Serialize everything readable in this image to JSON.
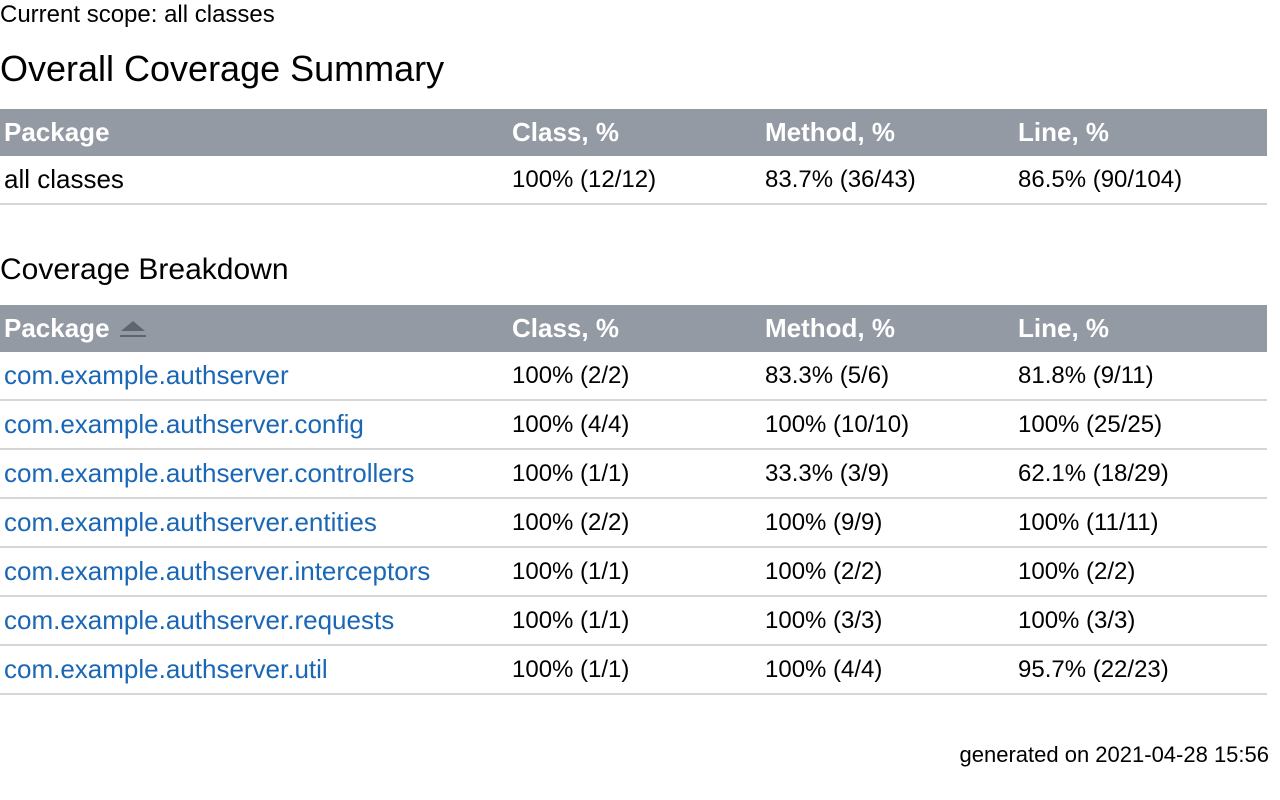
{
  "header": {
    "scope": "Current scope: all classes",
    "title": "Overall Coverage Summary"
  },
  "summary_table": {
    "columns": [
      "Package",
      "Class, %",
      "Method, %",
      "Line, %"
    ],
    "rows": [
      {
        "name": "all classes",
        "class": "100% (12/12)",
        "method": "83.7% (36/43)",
        "line": "86.5% (90/104)"
      }
    ]
  },
  "breakdown": {
    "title": "Coverage Breakdown",
    "sort": {
      "column": "Package",
      "direction": "ascending",
      "icon": "sort-ascending-icon"
    },
    "columns": [
      "Package",
      "Class, %",
      "Method, %",
      "Line, %"
    ],
    "rows": [
      {
        "name": "com.example.authserver",
        "class": "100% (2/2)",
        "method": "83.3% (5/6)",
        "line": "81.8% (9/11)"
      },
      {
        "name": "com.example.authserver.config",
        "class": "100% (4/4)",
        "method": "100% (10/10)",
        "line": "100% (25/25)"
      },
      {
        "name": "com.example.authserver.controllers",
        "class": "100% (1/1)",
        "method": "33.3% (3/9)",
        "line": "62.1% (18/29)"
      },
      {
        "name": "com.example.authserver.entities",
        "class": "100% (2/2)",
        "method": "100% (9/9)",
        "line": "100% (11/11)"
      },
      {
        "name": "com.example.authserver.interceptors",
        "class": "100% (1/1)",
        "method": "100% (2/2)",
        "line": "100% (2/2)"
      },
      {
        "name": "com.example.authserver.requests",
        "class": "100% (1/1)",
        "method": "100% (3/3)",
        "line": "100% (3/3)"
      },
      {
        "name": "com.example.authserver.util",
        "class": "100% (1/1)",
        "method": "100% (4/4)",
        "line": "95.7% (22/23)"
      }
    ]
  },
  "footer": {
    "generated": "generated on 2021-04-28 15:56"
  },
  "colors": {
    "header_bg": "#939aa4",
    "link": "#1a67b5",
    "row_border": "#d6d6d6"
  }
}
